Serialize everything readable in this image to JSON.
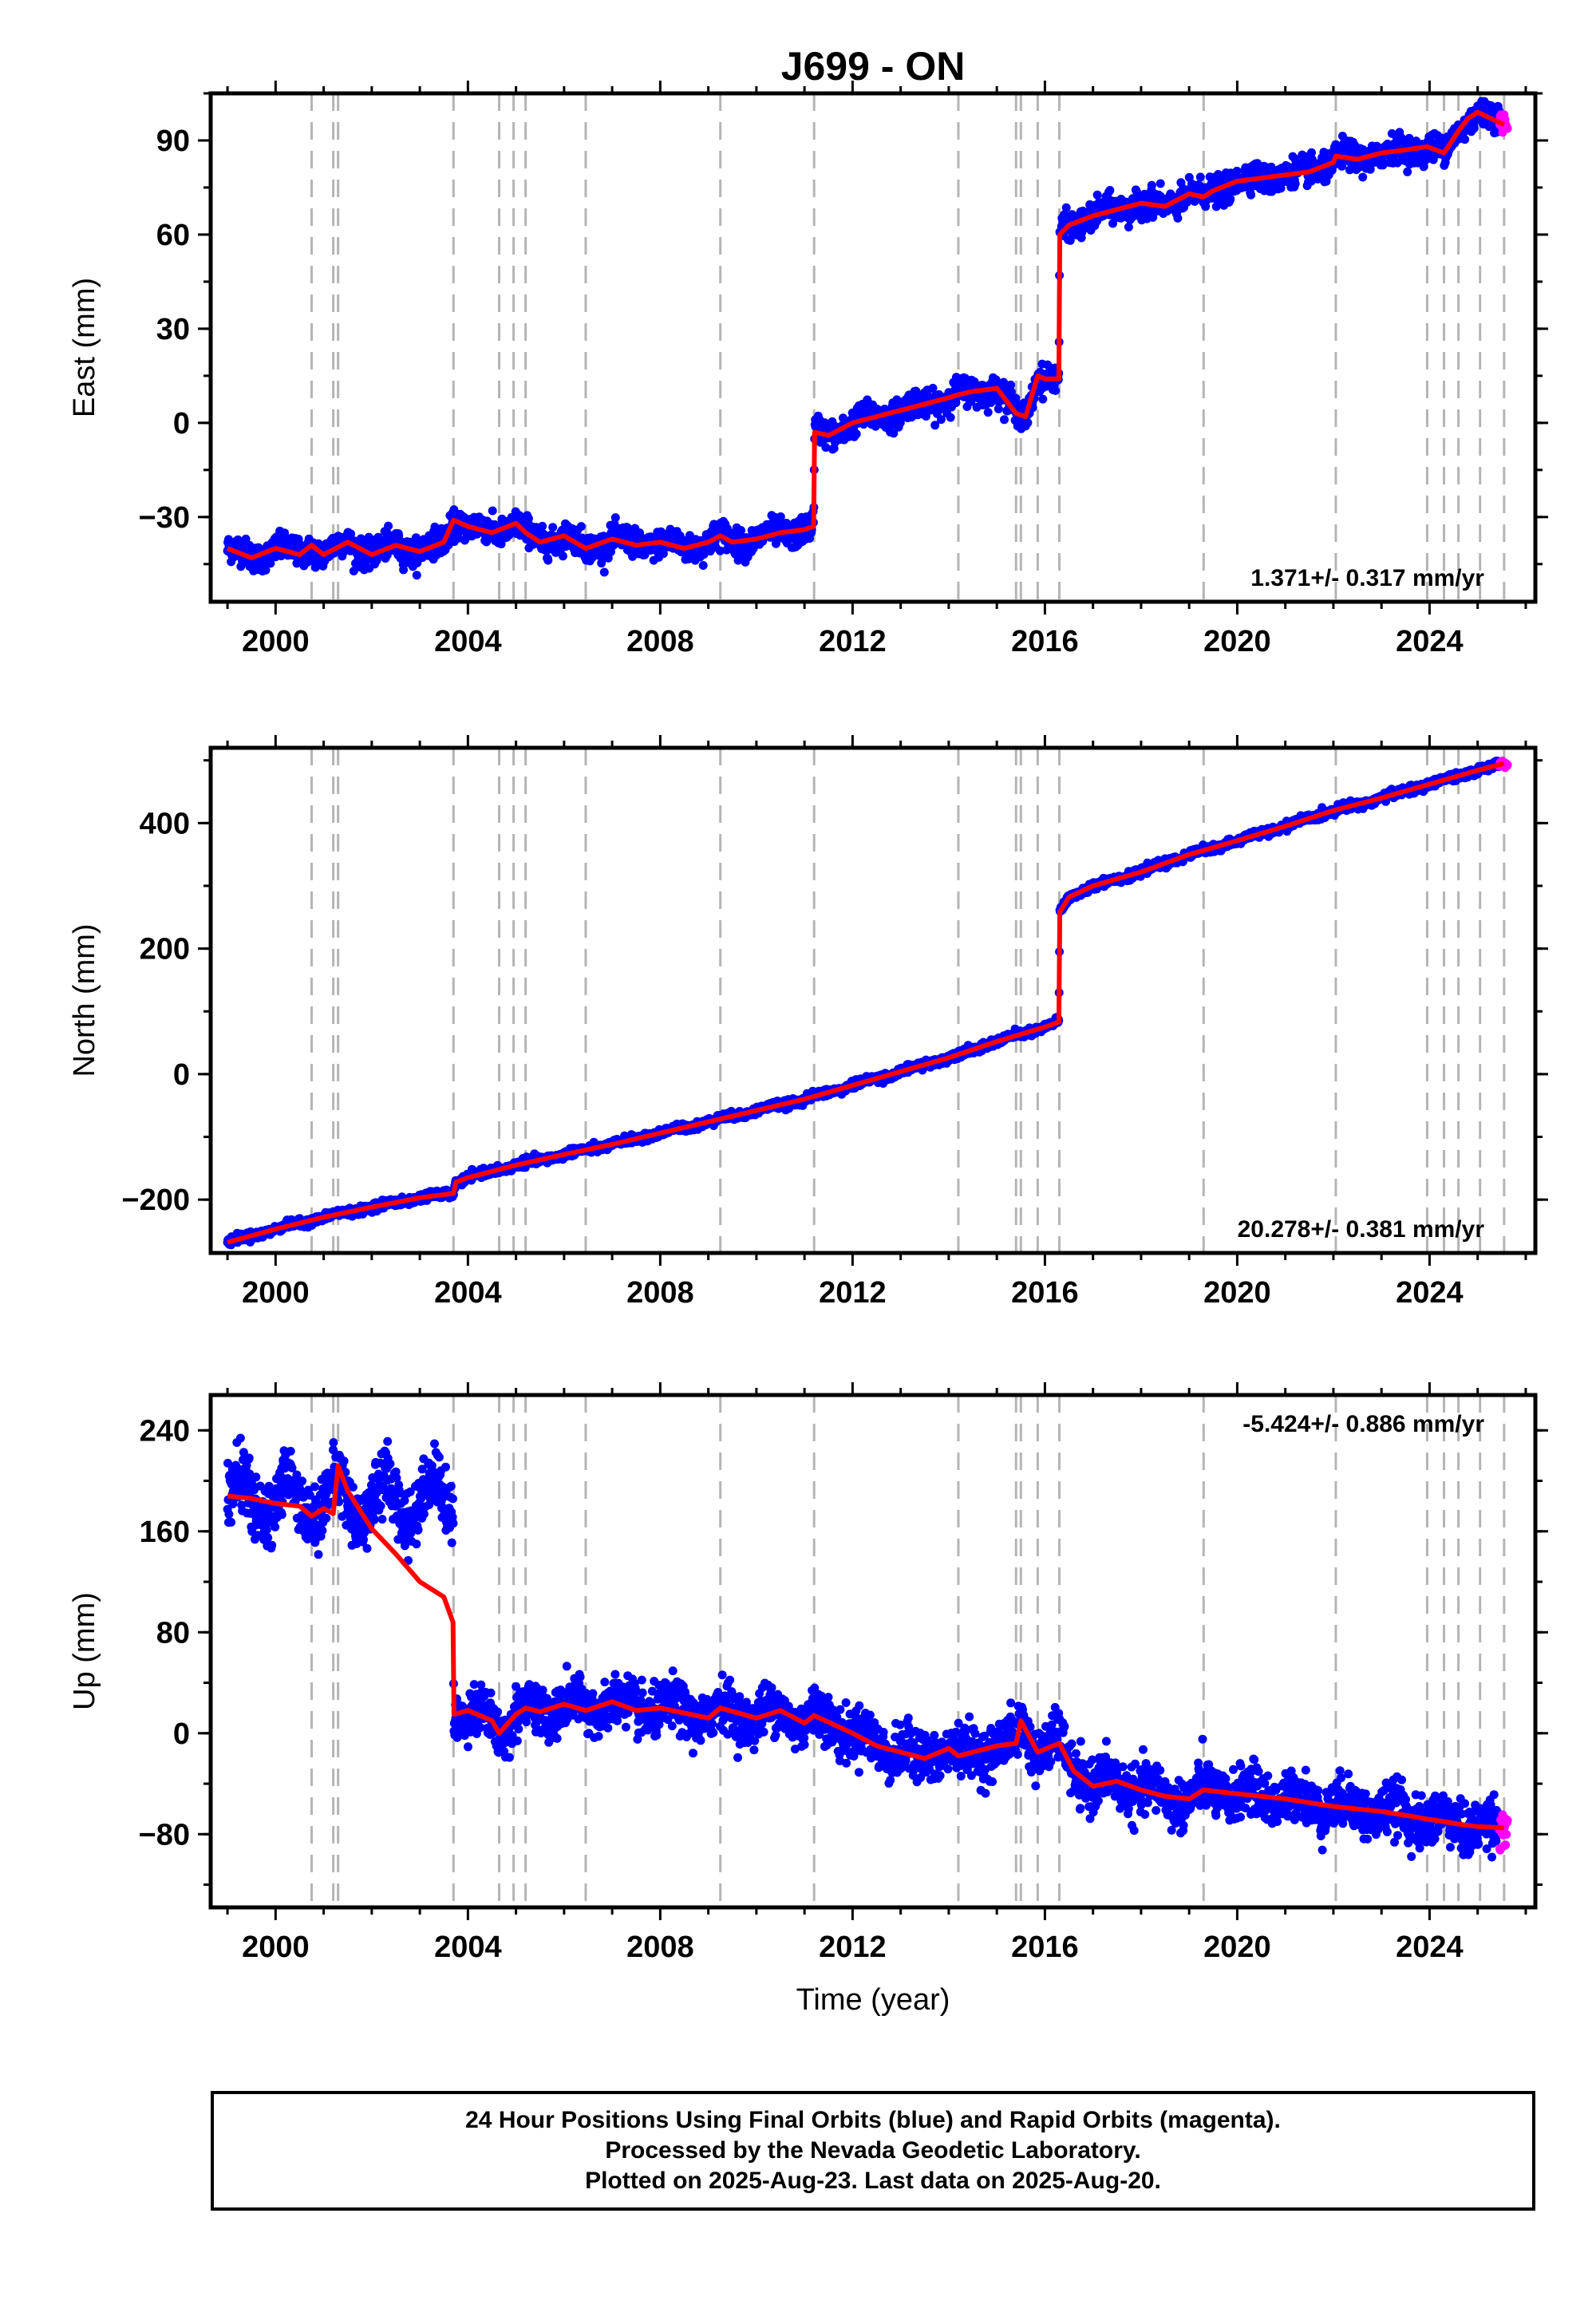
{
  "title": "J699 - ON",
  "x_axis_label": "Time (year)",
  "footer": {
    "line1": "24 Hour Positions Using Final Orbits (blue) and Rapid Orbits (magenta).",
    "line2": "Processed by the Nevada Geodetic Laboratory.",
    "line3": "Plotted on 2025-Aug-23. Last data on 2025-Aug-20."
  },
  "colors": {
    "final_orbits": "#0000ff",
    "rapid_orbits": "#ff00ff",
    "model": "#ff0000",
    "event_lines": "#b4b4b4"
  },
  "event_years": [
    2000.75,
    2001.2,
    2001.3,
    2003.7,
    2004.65,
    2004.95,
    2005.2,
    2006.45,
    2009.25,
    2011.2,
    2014.2,
    2015.4,
    2015.5,
    2015.85,
    2016.3,
    2019.3,
    2022.05,
    2023.95,
    2024.3,
    2024.6,
    2025.05,
    2025.55
  ],
  "chart_data": [
    {
      "type": "scatter",
      "panel": "east",
      "ylabel": "East (mm)",
      "rate_text": "1.371+/- 0.317 mm/yr",
      "rate_position": "bottom-right",
      "xlim": [
        1998.65,
        2026.2
      ],
      "ylim": [
        -57,
        105
      ],
      "x_ticks": [
        "2000",
        "2004",
        "2008",
        "2012",
        "2016",
        "2020",
        "2024"
      ],
      "y_ticks": [
        "-30",
        "0",
        "30",
        "60",
        "90"
      ],
      "grid": false,
      "scatter_noise_mm": 3.5,
      "model_line": {
        "x": [
          1999.0,
          1999.5,
          2000.0,
          2000.5,
          2000.75,
          2001.0,
          2001.5,
          2002.0,
          2002.5,
          2003.0,
          2003.5,
          2003.7,
          2004.0,
          2004.5,
          2005.0,
          2005.2,
          2005.5,
          2006.0,
          2006.45,
          2007.0,
          2007.5,
          2008.0,
          2008.5,
          2009.0,
          2009.25,
          2009.5,
          2010.0,
          2010.5,
          2011.0,
          2011.19,
          2011.21,
          2011.5,
          2012.0,
          2012.5,
          2013.0,
          2013.5,
          2014.0,
          2014.2,
          2014.5,
          2015.0,
          2015.4,
          2015.6,
          2015.85,
          2016.0,
          2016.29,
          2016.31,
          2016.5,
          2017.0,
          2017.5,
          2018.0,
          2018.5,
          2019.0,
          2019.3,
          2019.5,
          2020.0,
          2020.5,
          2021.0,
          2021.5,
          2022.0,
          2022.05,
          2022.5,
          2023.0,
          2023.5,
          2023.95,
          2024.3,
          2024.6,
          2024.8,
          2025.0,
          2025.55
        ],
        "y": [
          -40,
          -43,
          -40,
          -42,
          -39,
          -42,
          -38,
          -42,
          -39,
          -41,
          -38,
          -31,
          -33,
          -35,
          -32,
          -35,
          -38,
          -36,
          -40,
          -37,
          -39,
          -38,
          -40,
          -38,
          -36,
          -38,
          -37,
          -35,
          -34,
          -33,
          -3,
          -4,
          0,
          2,
          4,
          6,
          8,
          9,
          10,
          11,
          3,
          2,
          15,
          14,
          14,
          60,
          63,
          66,
          68,
          70,
          69,
          73,
          72,
          74,
          77,
          78,
          79,
          80,
          83,
          85,
          84,
          86,
          87,
          88,
          86,
          93,
          97,
          99,
          95
        ]
      }
    },
    {
      "type": "scatter",
      "panel": "north",
      "ylabel": "North (mm)",
      "rate_text": "20.278+/- 0.381 mm/yr",
      "rate_position": "bottom-right",
      "xlim": [
        1998.65,
        2026.2
      ],
      "ylim": [
        -285,
        520
      ],
      "x_ticks": [
        "2000",
        "2004",
        "2008",
        "2012",
        "2016",
        "2020",
        "2024"
      ],
      "y_ticks": [
        "-200",
        "0",
        "200",
        "400"
      ],
      "grid": false,
      "scatter_noise_mm": 5,
      "model_line": {
        "x": [
          1999.0,
          2000.0,
          2001.0,
          2002.0,
          2003.0,
          2003.7,
          2003.75,
          2004.0,
          2005.0,
          2006.0,
          2007.0,
          2008.0,
          2009.0,
          2010.0,
          2011.0,
          2012.0,
          2013.0,
          2014.0,
          2015.0,
          2016.0,
          2016.29,
          2016.31,
          2016.5,
          2017.0,
          2018.0,
          2019.0,
          2020.0,
          2021.0,
          2022.0,
          2023.0,
          2024.0,
          2025.0,
          2025.55
        ],
        "y": [
          -268,
          -247,
          -228,
          -212,
          -197,
          -190,
          -172,
          -165,
          -145,
          -128,
          -112,
          -94,
          -76,
          -58,
          -40,
          -18,
          4,
          26,
          52,
          75,
          83,
          258,
          282,
          300,
          322,
          350,
          372,
          395,
          420,
          440,
          462,
          484,
          495
        ]
      }
    },
    {
      "type": "scatter",
      "panel": "up",
      "ylabel": "Up (mm)",
      "rate_text": "-5.424+/- 0.886 mm/yr",
      "rate_position": "top-right",
      "xlim": [
        1998.65,
        2026.2
      ],
      "ylim": [
        -138,
        268
      ],
      "x_ticks": [
        "2000",
        "2004",
        "2008",
        "2012",
        "2016",
        "2020",
        "2024"
      ],
      "y_ticks": [
        "-80",
        "0",
        "80",
        "160",
        "240"
      ],
      "grid": false,
      "scatter_noise_mm": 16,
      "model_line": {
        "x": [
          1999.0,
          1999.5,
          2000.0,
          2000.5,
          2000.75,
          2001.0,
          2001.2,
          2001.3,
          2001.5,
          2002.0,
          2002.5,
          2003.0,
          2003.5,
          2003.69,
          2003.71,
          2004.0,
          2004.5,
          2004.65,
          2005.0,
          2005.2,
          2005.5,
          2006.0,
          2006.45,
          2007.0,
          2007.5,
          2008.0,
          2009.0,
          2009.25,
          2010.0,
          2010.5,
          2011.0,
          2011.2,
          2012.0,
          2012.5,
          2013.0,
          2013.5,
          2014.0,
          2014.2,
          2015.0,
          2015.4,
          2015.5,
          2015.85,
          2016.3,
          2016.6,
          2017.0,
          2017.5,
          2018.0,
          2018.5,
          2019.0,
          2019.3,
          2020.0,
          2020.5,
          2021.0,
          2021.5,
          2022.0,
          2022.5,
          2023.0,
          2023.5,
          2023.95,
          2024.3,
          2024.6,
          2025.0,
          2025.55
        ],
        "y": [
          188,
          186,
          182,
          180,
          172,
          178,
          174,
          212,
          192,
          162,
          142,
          120,
          108,
          88,
          15,
          18,
          10,
          0,
          15,
          20,
          17,
          23,
          18,
          25,
          18,
          20,
          12,
          20,
          12,
          18,
          8,
          14,
          0,
          -10,
          -15,
          -20,
          -12,
          -18,
          -10,
          -8,
          10,
          -15,
          -8,
          -30,
          -42,
          -38,
          -45,
          -50,
          -52,
          -45,
          -48,
          -50,
          -52,
          -55,
          -58,
          -60,
          -62,
          -65,
          -68,
          -70,
          -72,
          -74,
          -75
        ]
      }
    }
  ]
}
